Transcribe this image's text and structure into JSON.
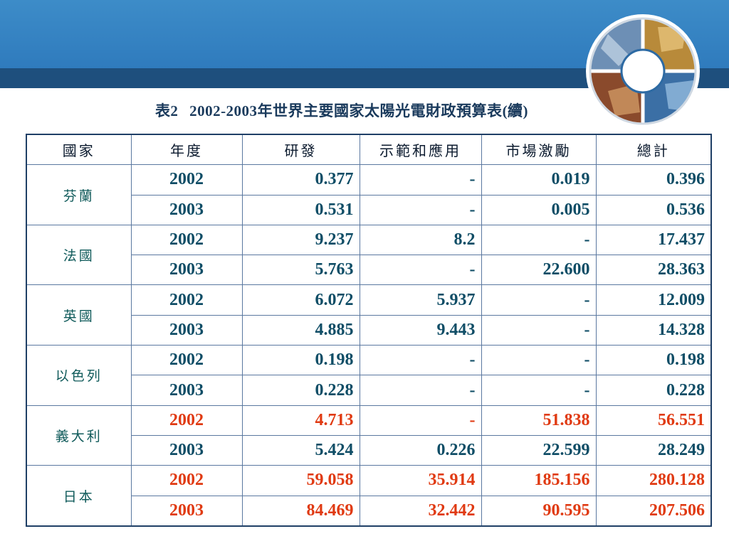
{
  "title": {
    "prefix": "表2",
    "years": "2002-2003",
    "text": "年世界主要國家太陽光電財政預算表",
    "suffix": "(續)"
  },
  "table": {
    "headers": [
      "國家",
      "年度",
      "研發",
      "示範和應用",
      "市場激勵",
      "總計"
    ],
    "groups": [
      {
        "country": "芬蘭",
        "country_highlight": false,
        "rows": [
          {
            "year": "2002",
            "rd": "0.377",
            "demo": "-",
            "market": "0.019",
            "total": "0.396",
            "highlight": false
          },
          {
            "year": "2003",
            "rd": "0.531",
            "demo": "-",
            "market": "0.005",
            "total": "0.536",
            "highlight": false
          }
        ]
      },
      {
        "country": "法國",
        "country_highlight": false,
        "rows": [
          {
            "year": "2002",
            "rd": "9.237",
            "demo": "8.2",
            "market": "-",
            "total": "17.437",
            "highlight": false
          },
          {
            "year": "2003",
            "rd": "5.763",
            "demo": "-",
            "market": "22.600",
            "total": "28.363",
            "highlight": false
          }
        ]
      },
      {
        "country": "英國",
        "country_highlight": false,
        "rows": [
          {
            "year": "2002",
            "rd": "6.072",
            "demo": "5.937",
            "market": "-",
            "total": "12.009",
            "highlight": false
          },
          {
            "year": "2003",
            "rd": "4.885",
            "demo": "9.443",
            "market": "-",
            "total": "14.328",
            "highlight": false
          }
        ]
      },
      {
        "country": "以色列",
        "country_highlight": false,
        "rows": [
          {
            "year": "2002",
            "rd": "0.198",
            "demo": "-",
            "market": "-",
            "total": "0.198",
            "highlight": false
          },
          {
            "year": "2003",
            "rd": "0.228",
            "demo": "-",
            "market": "-",
            "total": "0.228",
            "highlight": false
          }
        ]
      },
      {
        "country": "義大利",
        "country_highlight": true,
        "rows": [
          {
            "year": "2002",
            "rd": "4.713",
            "demo": "-",
            "market": "51.838",
            "total": "56.551",
            "highlight": true
          },
          {
            "year": "2003",
            "rd": "5.424",
            "demo": "0.226",
            "market": "22.599",
            "total": "28.249",
            "highlight": false
          }
        ]
      },
      {
        "country": "日本",
        "country_highlight": true,
        "rows": [
          {
            "year": "2002",
            "rd": "59.058",
            "demo": "35.914",
            "market": "185.156",
            "total": "280.128",
            "highlight": true
          },
          {
            "year": "2003",
            "rd": "84.469",
            "demo": "32.442",
            "market": "90.595",
            "total": "207.506",
            "highlight": true
          }
        ]
      }
    ]
  },
  "colors": {
    "text_normal": "#0f4d66",
    "text_highlight": "#e03a12",
    "band_top": "#3388c6",
    "band_dark": "#1e4f7d"
  },
  "icons": {
    "logo": "business-photo-collage-ring-icon"
  }
}
